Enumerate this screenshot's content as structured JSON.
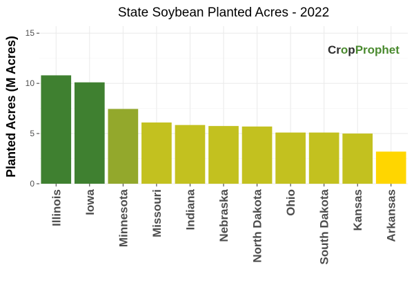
{
  "chart_data": {
    "type": "bar",
    "title": "State Soybean Planted Acres - 2022",
    "xlabel": "",
    "ylabel": "Planted Acres (M Acres)",
    "categories": [
      "Illinois",
      "Iowa",
      "Minnesota",
      "Missouri",
      "Indiana",
      "Nebraska",
      "North Dakota",
      "Ohio",
      "South Dakota",
      "Kansas",
      "Arkansas"
    ],
    "values": [
      10.8,
      10.1,
      7.45,
      6.1,
      5.85,
      5.75,
      5.7,
      5.1,
      5.1,
      5.0,
      3.2
    ],
    "bar_colors": [
      "#3f8030",
      "#3f8030",
      "#93a82c",
      "#c3c11f",
      "#c3c11f",
      "#c3c11f",
      "#c3c11f",
      "#c3c11f",
      "#c3c11f",
      "#c3c11f",
      "#ffd600"
    ],
    "ylim": [
      0,
      15.7
    ],
    "yticks": [
      0,
      5,
      10,
      15
    ],
    "grid": true,
    "legend": "none"
  },
  "logo": {
    "text_dark": "Cr",
    "text_light": "p",
    "text_brand": "Prophet",
    "color_dark": "#2e2e2e",
    "color_brand": "#4a8a2f"
  },
  "colors": {
    "panel_background": "#ffffff",
    "grid_major": "#ebebeb",
    "grid_minor": "#f5f5f5",
    "axis_line": "#333333"
  }
}
